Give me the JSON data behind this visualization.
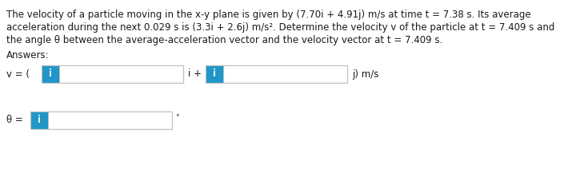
{
  "text_line1": "The velocity of a particle moving in the x-y plane is given by (7.70i + 4.91j) m/s at time t = 7.38 s. Its average",
  "text_line2": "acceleration during the next 0.029 s is (3.3i + 2.6j) m/s². Determine the velocity v of the particle at t = 7.409 s and",
  "text_line3": "the angle θ between the average-acceleration vector and the velocity vector at t = 7.409 s.",
  "answers_label": "Answers:",
  "v_label": "v = ( ",
  "i_plus_label": "i +",
  "j_label": "j) m/s",
  "theta_label": "θ =",
  "degree_symbol": "°",
  "box_color": "#2196c8",
  "box_text": "i",
  "input_border_color": "#c0c0c0",
  "background_color": "#ffffff",
  "text_color": "#1a1a1a",
  "font_size": 8.5
}
